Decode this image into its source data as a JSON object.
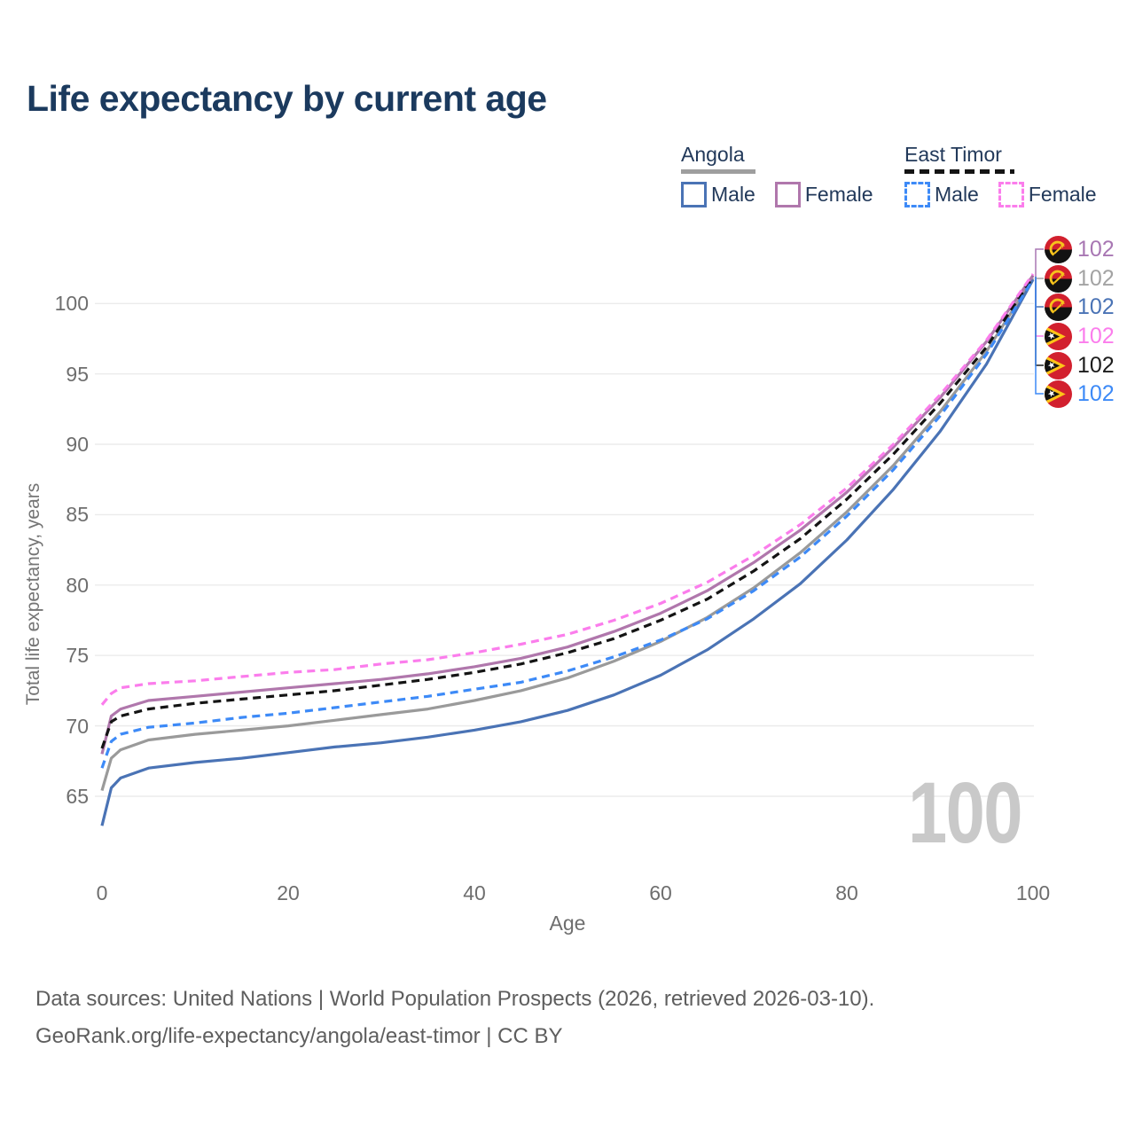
{
  "title": "Life expectancy by current age",
  "legend": {
    "groups": [
      {
        "name": "Angola",
        "line_style": "solid",
        "underline_color": "#9e9e9e",
        "items": [
          {
            "label": "Male",
            "color": "#4a73b5"
          },
          {
            "label": "Female",
            "color": "#b077ac"
          }
        ]
      },
      {
        "name": "East Timor",
        "line_style": "dashed",
        "underline_color": "#141414",
        "items": [
          {
            "label": "Male",
            "color": "#3d8af7"
          },
          {
            "label": "Female",
            "color": "#fb7dec"
          }
        ]
      }
    ]
  },
  "axes": {
    "x_title": "Age",
    "y_title": "Total life expectancy, years",
    "x_ticks": [
      0,
      20,
      40,
      60,
      80,
      100
    ],
    "y_ticks": [
      65,
      70,
      75,
      80,
      85,
      90,
      95,
      100
    ]
  },
  "age_indicator": "100",
  "end_labels": [
    {
      "value": "102",
      "flag": "angola",
      "color": "#a877b3"
    },
    {
      "value": "102",
      "flag": "angola",
      "color": "#a3a3a3"
    },
    {
      "value": "102",
      "flag": "angola",
      "color": "#4a73b5"
    },
    {
      "value": "102",
      "flag": "east-timor",
      "color": "#fb7dec"
    },
    {
      "value": "102",
      "flag": "east-timor",
      "color": "#1c1c1c"
    },
    {
      "value": "102",
      "flag": "east-timor",
      "color": "#3d8af7"
    }
  ],
  "chart_data": {
    "type": "line",
    "title": "Life expectancy by current age",
    "xlabel": "Age",
    "ylabel": "Total life expectancy, years",
    "xlim": [
      0,
      100
    ],
    "ylim": [
      62,
      103.5
    ],
    "grid": "horizontal",
    "legend_position": "top-right",
    "x": [
      0,
      1,
      2,
      5,
      10,
      15,
      20,
      25,
      30,
      35,
      40,
      45,
      50,
      55,
      60,
      65,
      70,
      75,
      80,
      85,
      90,
      95,
      100
    ],
    "series": [
      {
        "name": "Angola Both sexes",
        "country": "Angola",
        "sex": "both",
        "style": "solid",
        "color": "#9a9a9a",
        "values": [
          65.4,
          67.7,
          68.3,
          69.0,
          69.4,
          69.7,
          70.0,
          70.4,
          70.8,
          71.2,
          71.8,
          72.5,
          73.4,
          74.6,
          76.0,
          77.7,
          79.8,
          82.3,
          85.2,
          88.5,
          92.3,
          96.6,
          101.8
        ]
      },
      {
        "name": "Angola Male",
        "country": "Angola",
        "sex": "male",
        "style": "solid",
        "color": "#4a73b5",
        "values": [
          62.9,
          65.6,
          66.3,
          67.0,
          67.4,
          67.7,
          68.1,
          68.5,
          68.8,
          69.2,
          69.7,
          70.3,
          71.1,
          72.2,
          73.6,
          75.4,
          77.6,
          80.1,
          83.2,
          86.8,
          90.9,
          95.7,
          101.7
        ]
      },
      {
        "name": "Angola Female",
        "country": "Angola",
        "sex": "female",
        "style": "solid",
        "color": "#b077ac",
        "values": [
          68.0,
          70.7,
          71.2,
          71.8,
          72.1,
          72.4,
          72.7,
          73.0,
          73.3,
          73.7,
          74.2,
          74.8,
          75.6,
          76.7,
          78.0,
          79.6,
          81.6,
          83.9,
          86.6,
          89.8,
          93.3,
          97.3,
          102.0
        ]
      },
      {
        "name": "East Timor Both sexes",
        "country": "East Timor",
        "sex": "both",
        "style": "dashed",
        "color": "#141414",
        "values": [
          68.4,
          70.3,
          70.7,
          71.2,
          71.6,
          71.9,
          72.2,
          72.5,
          72.9,
          73.3,
          73.8,
          74.4,
          75.2,
          76.2,
          77.5,
          79.0,
          81.0,
          83.3,
          86.1,
          89.3,
          92.9,
          96.9,
          101.9
        ]
      },
      {
        "name": "East Timor Male",
        "country": "East Timor",
        "sex": "male",
        "style": "dashed",
        "color": "#3d8af7",
        "values": [
          67.0,
          68.9,
          69.4,
          69.9,
          70.2,
          70.6,
          70.9,
          71.3,
          71.7,
          72.1,
          72.6,
          73.1,
          73.9,
          74.9,
          76.1,
          77.6,
          79.6,
          82.0,
          84.9,
          88.2,
          92.0,
          96.4,
          101.7
        ]
      },
      {
        "name": "East Timor Female",
        "country": "East Timor",
        "sex": "female",
        "style": "dashed",
        "color": "#fb7dec",
        "values": [
          71.5,
          72.3,
          72.7,
          73.0,
          73.2,
          73.5,
          73.8,
          74.0,
          74.4,
          74.7,
          75.2,
          75.8,
          76.5,
          77.5,
          78.7,
          80.2,
          82.1,
          84.3,
          86.9,
          90.0,
          93.5,
          97.4,
          102.1
        ]
      }
    ]
  },
  "footer": {
    "line1": "Data sources: United Nations | World Population Prospects (2026, retrieved 2026-03-10).",
    "line2": "GeoRank.org/life-expectancy/angola/east-timor | CC BY"
  }
}
